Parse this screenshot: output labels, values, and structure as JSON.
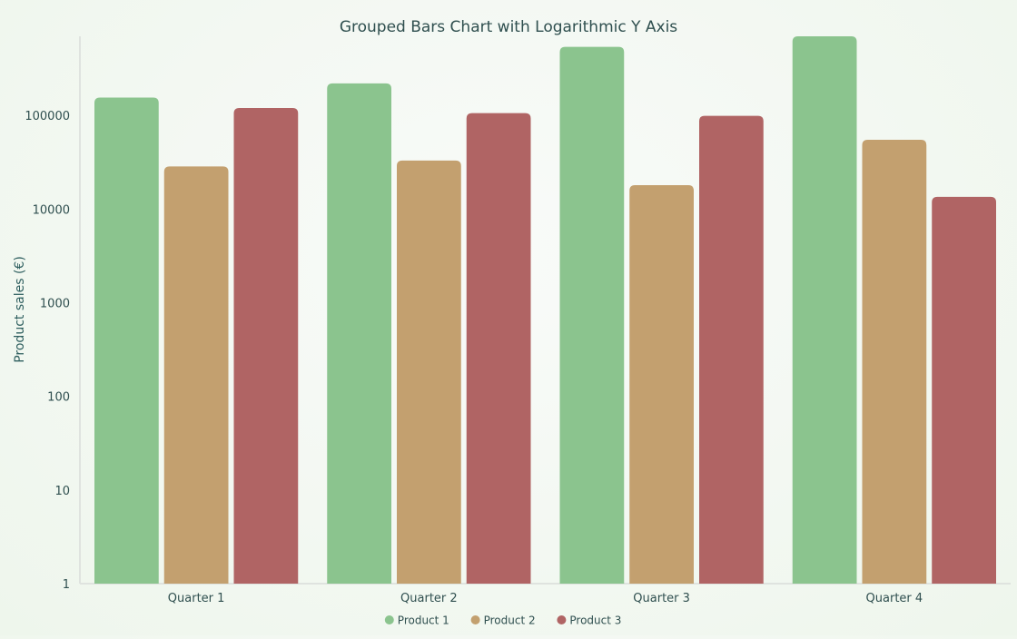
{
  "chart_data": {
    "type": "bar",
    "title": "Grouped Bars Chart with Logarithmic Y Axis",
    "xlabel": "",
    "ylabel": "Product sales (€)",
    "y_scale": "log",
    "ylim": [
      1,
      700000
    ],
    "y_ticks": [
      "1",
      "10",
      "100",
      "1000",
      "10000",
      "100000"
    ],
    "categories": [
      "Quarter 1",
      "Quarter 2",
      "Quarter 3",
      "Quarter 4"
    ],
    "series": [
      {
        "name": "Product 1",
        "color": "#8bc48e",
        "values": [
          155000,
          220000,
          540000,
          700000
        ]
      },
      {
        "name": "Product 2",
        "color": "#c3a06f",
        "values": [
          28500,
          33000,
          18000,
          55000
        ]
      },
      {
        "name": "Product 3",
        "color": "#b06464",
        "values": [
          120000,
          106000,
          99000,
          13500
        ]
      }
    ],
    "legend_position": "bottom-center",
    "grid": false
  }
}
